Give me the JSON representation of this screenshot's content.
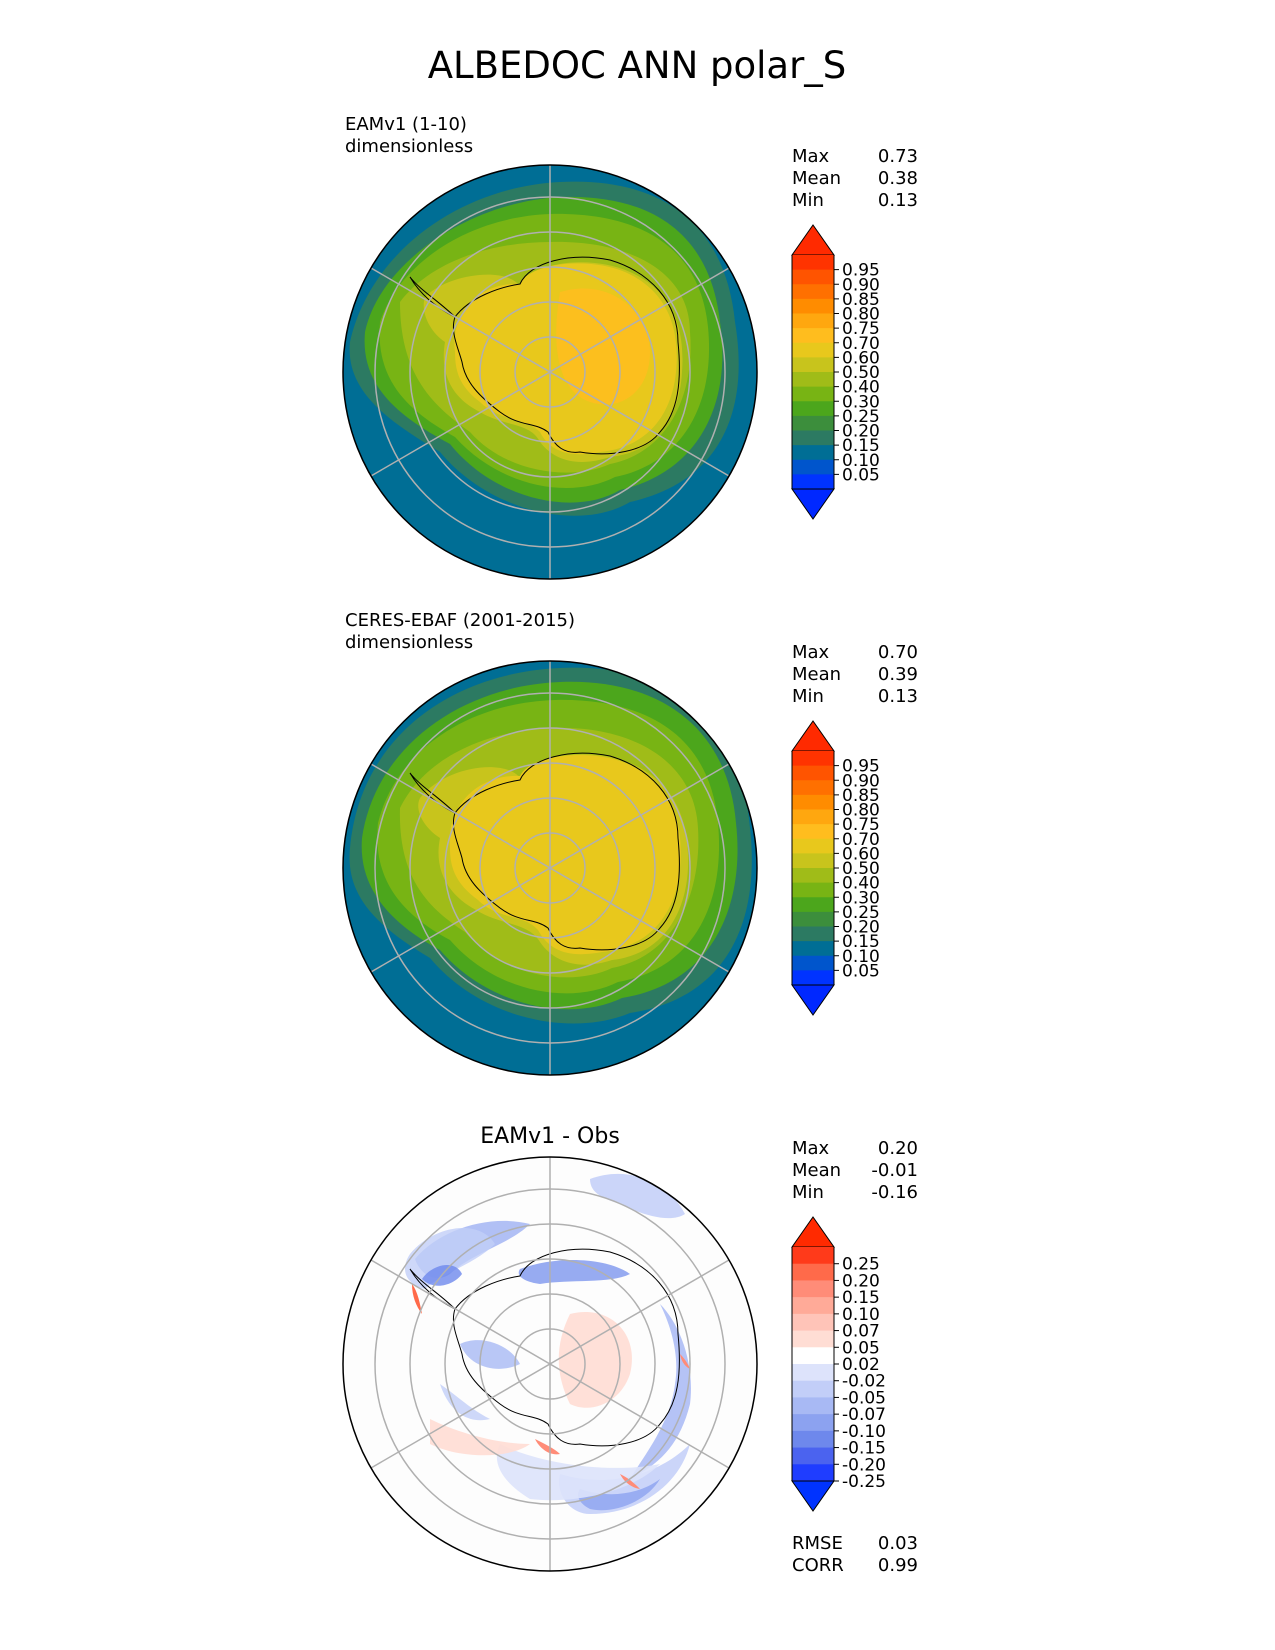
{
  "title": "ALBEDOC ANN polar_S",
  "colors": {
    "ocean": "#006e95",
    "grid": "#b0b0b0",
    "coast": "#000000",
    "diff_background": "#fdfdfd"
  },
  "chart_data": [
    {
      "type": "polar-contour-map",
      "projection": "south-polar-stereographic",
      "label_line1": "EAMv1 (1-10)",
      "label_line2": "dimensionless",
      "stats": [
        {
          "label": "Max",
          "value": "0.73"
        },
        {
          "label": "Mean",
          "value": "0.38"
        },
        {
          "label": "Min",
          "value": "0.13"
        }
      ],
      "colorbar": {
        "ticks": [
          "0.95",
          "0.90",
          "0.85",
          "0.80",
          "0.75",
          "0.70",
          "0.60",
          "0.50",
          "0.40",
          "0.30",
          "0.25",
          "0.20",
          "0.15",
          "0.10",
          "0.05"
        ],
        "colors": [
          "#ff3300",
          "#ff5400",
          "#ff7000",
          "#ff8c00",
          "#ffa70f",
          "#ffbd1e",
          "#e8c81c",
          "#c8c41c",
          "#a0bc18",
          "#78b414",
          "#4ca61c",
          "#3c8e3c",
          "#2c7a62",
          "#006e95",
          "#0055cc",
          "#0033ff"
        ],
        "extend_top": "#ff2a00",
        "extend_bottom": "#0028ff"
      }
    },
    {
      "type": "polar-contour-map",
      "projection": "south-polar-stereographic",
      "label_line1": "CERES-EBAF (2001-2015)",
      "label_line2": "dimensionless",
      "stats": [
        {
          "label": "Max",
          "value": "0.70"
        },
        {
          "label": "Mean",
          "value": "0.39"
        },
        {
          "label": "Min",
          "value": "0.13"
        }
      ],
      "colorbar": {
        "ticks": [
          "0.95",
          "0.90",
          "0.85",
          "0.80",
          "0.75",
          "0.70",
          "0.60",
          "0.50",
          "0.40",
          "0.30",
          "0.25",
          "0.20",
          "0.15",
          "0.10",
          "0.05"
        ],
        "colors": [
          "#ff3300",
          "#ff5400",
          "#ff7000",
          "#ff8c00",
          "#ffa70f",
          "#ffbd1e",
          "#e8c81c",
          "#c8c41c",
          "#a0bc18",
          "#78b414",
          "#4ca61c",
          "#3c8e3c",
          "#2c7a62",
          "#006e95",
          "#0055cc",
          "#0033ff"
        ],
        "extend_top": "#ff2a00",
        "extend_bottom": "#0028ff"
      }
    },
    {
      "type": "polar-contour-map",
      "projection": "south-polar-stereographic",
      "title": "EAMv1 - Obs",
      "stats": [
        {
          "label": "Max",
          "value": "0.20"
        },
        {
          "label": "Mean",
          "value": "-0.01"
        },
        {
          "label": "Min",
          "value": "-0.16"
        }
      ],
      "metrics": [
        {
          "label": "RMSE",
          "value": "0.03"
        },
        {
          "label": "CORR",
          "value": "0.99"
        }
      ],
      "colorbar": {
        "ticks": [
          "0.25",
          "0.20",
          "0.15",
          "0.10",
          "0.07",
          "0.05",
          "0.02",
          "-0.02",
          "-0.05",
          "-0.07",
          "-0.10",
          "-0.15",
          "-0.20",
          "-0.25"
        ],
        "colors": [
          "#ff3a1a",
          "#ff6a4a",
          "#ff8c78",
          "#ffaa98",
          "#ffc4b8",
          "#ffddd4",
          "#ffffff",
          "#dde3fb",
          "#c2cef8",
          "#a8b9f4",
          "#8ca2f0",
          "#6e88ec",
          "#4b63ef",
          "#1f3dff"
        ],
        "extend_top": "#ff2a00",
        "extend_bottom": "#0033ff"
      }
    }
  ]
}
